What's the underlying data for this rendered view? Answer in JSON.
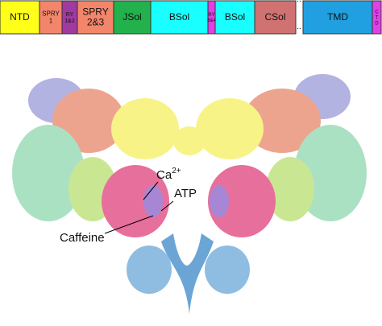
{
  "domains": [
    {
      "lines": [
        "NTD"
      ]
    },
    {
      "lines": [
        "SPRY",
        "1"
      ]
    },
    {
      "lines": [
        "RY",
        "1&2"
      ]
    },
    {
      "lines": [
        "SPRY",
        "2&3"
      ]
    },
    {
      "lines": [
        "JSol"
      ]
    },
    {
      "lines": [
        "BSol"
      ]
    },
    {
      "lines": [
        "RY",
        "3&4"
      ]
    },
    {
      "lines": [
        "BSol"
      ]
    },
    {
      "lines": [
        "CSol"
      ]
    },
    {
      "lines": [
        "TMD"
      ]
    },
    {
      "lines": [
        "C",
        "T",
        "D"
      ]
    }
  ],
  "gap": "..",
  "labels": {
    "calcium": "Ca",
    "calcium_charge": "2+",
    "atp": "ATP",
    "caffeine": "Caffeine"
  }
}
